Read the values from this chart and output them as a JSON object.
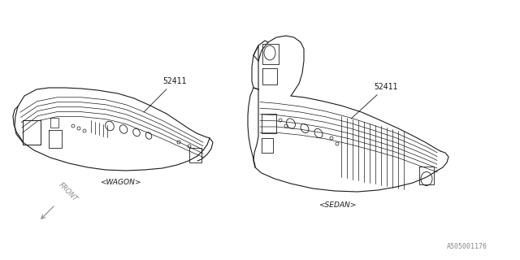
{
  "bg_color": "#ffffff",
  "line_color": "#1a1a1a",
  "line_width": 0.8,
  "label_wagon": "<WAGON>",
  "label_sedan": "<SEDAN>",
  "part_number": "52411",
  "catalog_number": "A505001176",
  "front_label": "FRONT",
  "label_fontsize": 6.5,
  "pn_fontsize": 7,
  "catalog_fontsize": 6
}
